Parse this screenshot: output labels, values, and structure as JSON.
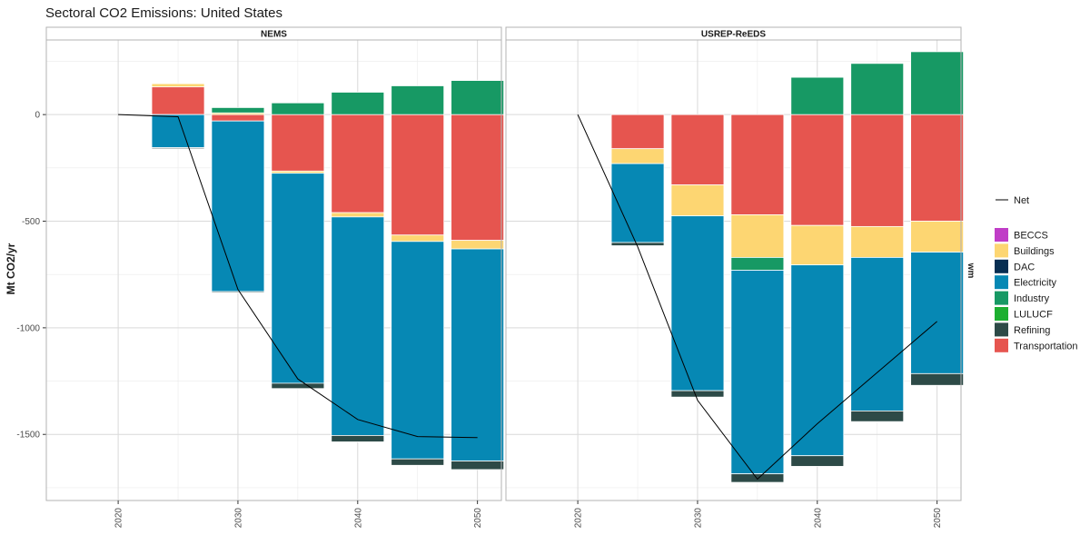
{
  "chart_data": {
    "type": "bar",
    "title": "Sectoral CO2 Emissions: United States",
    "ylabel": "Mt CO2/yr",
    "xlabel": "",
    "right_strip_label": "wm",
    "ylim": [
      -1810,
      350
    ],
    "xlim": [
      2014,
      2052
    ],
    "x_ticks": [
      2020,
      2030,
      2040,
      2050
    ],
    "y_ticks": [
      -1500,
      -1000,
      -500,
      0
    ],
    "y_tick_labels": [
      "-1500",
      "-1000",
      "-500",
      "0"
    ],
    "grid": true,
    "legend_position": "right",
    "sectors": [
      "BECCS",
      "Buildings",
      "DAC",
      "Electricity",
      "Industry",
      "LULUCF",
      "Refining",
      "Transportation"
    ],
    "colors": {
      "BECCS": "#c03dc7",
      "Buildings": "#fdd672",
      "DAC": "#072e52",
      "Electricity": "#0688b4",
      "Industry": "#179964",
      "LULUCF": "#1daf30",
      "Refining": "#2d4a47",
      "Transportation": "#e6554f",
      "Net": "#000000"
    },
    "legend_line_label": "Net",
    "panels": [
      {
        "name": "NEMS",
        "years": [
          2025,
          2030,
          2035,
          2040,
          2045,
          2050
        ],
        "series": [
          {
            "name": "Transportation",
            "values": [
              130,
              -30,
              -265,
              -460,
              -565,
              -590
            ]
          },
          {
            "name": "Buildings",
            "values": [
              15,
              8,
              -10,
              -20,
              -30,
              -40
            ]
          },
          {
            "name": "Industry",
            "values": [
              0,
              25,
              55,
              105,
              135,
              160
            ]
          },
          {
            "name": "Electricity",
            "values": [
              -155,
              -800,
              -985,
              -1025,
              -1020,
              -995
            ]
          },
          {
            "name": "Refining",
            "values": [
              -5,
              -5,
              -25,
              -30,
              -30,
              -40
            ]
          }
        ],
        "net": {
          "x": [
            2020,
            2025,
            2030,
            2035,
            2040,
            2045,
            2050
          ],
          "y": [
            0,
            -10,
            -820,
            -1240,
            -1430,
            -1510,
            -1515
          ]
        }
      },
      {
        "name": "USREP-ReEDS",
        "years": [
          2025,
          2030,
          2035,
          2040,
          2045,
          2050
        ],
        "series": [
          {
            "name": "Transportation",
            "values": [
              -160,
              -330,
              -470,
              -520,
              -525,
              -500
            ]
          },
          {
            "name": "Buildings",
            "values": [
              -70,
              -145,
              -200,
              -185,
              -145,
              -145
            ]
          },
          {
            "name": "Industry",
            "values": [
              0,
              0,
              -60,
              175,
              240,
              295
            ]
          },
          {
            "name": "Electricity",
            "values": [
              -370,
              -820,
              -955,
              -895,
              -720,
              -570
            ]
          },
          {
            "name": "Refining",
            "values": [
              -15,
              -30,
              -40,
              -50,
              -50,
              -55
            ]
          }
        ],
        "net": {
          "x": [
            2020,
            2025,
            2030,
            2035,
            2040,
            2045,
            2050
          ],
          "y": [
            0,
            -620,
            -1340,
            -1710,
            -1450,
            -1210,
            -970
          ]
        }
      }
    ]
  }
}
